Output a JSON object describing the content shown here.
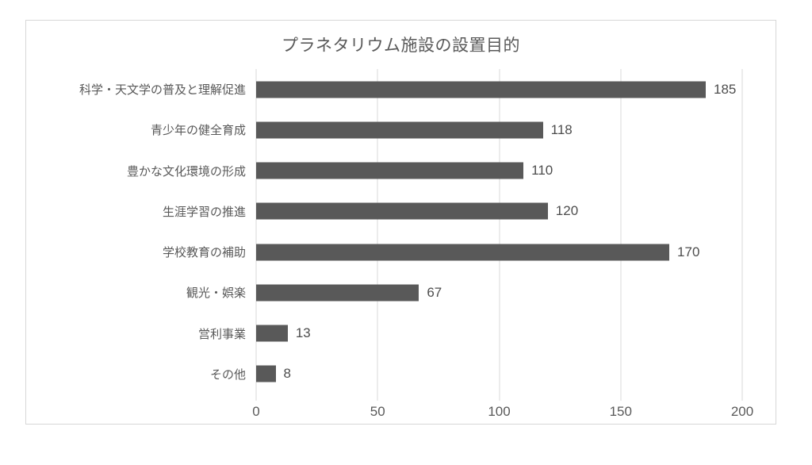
{
  "chart_data": {
    "type": "bar",
    "orientation": "horizontal",
    "title": "プラネタリウム施設の設置目的",
    "categories": [
      "科学・天文学の普及と理解促進",
      "青少年の健全育成",
      "豊かな文化環境の形成",
      "生涯学習の推進",
      "学校教育の補助",
      "観光・娯楽",
      "営利事業",
      "その他"
    ],
    "values": [
      185,
      118,
      110,
      120,
      170,
      67,
      13,
      8
    ],
    "xlabel": "",
    "ylabel": "",
    "xlim": [
      0,
      200
    ],
    "x_ticks": [
      0,
      50,
      100,
      150,
      200
    ],
    "grid": true,
    "legend_position": "none",
    "colors": {
      "bar": "#595959",
      "gridline": "#d9d9d9",
      "frame_border": "#d7d7d7",
      "title_text": "#595959",
      "category_text": "#595959",
      "value_text": "#4d4d4d",
      "tick_text": "#595959",
      "background": "#ffffff"
    }
  }
}
